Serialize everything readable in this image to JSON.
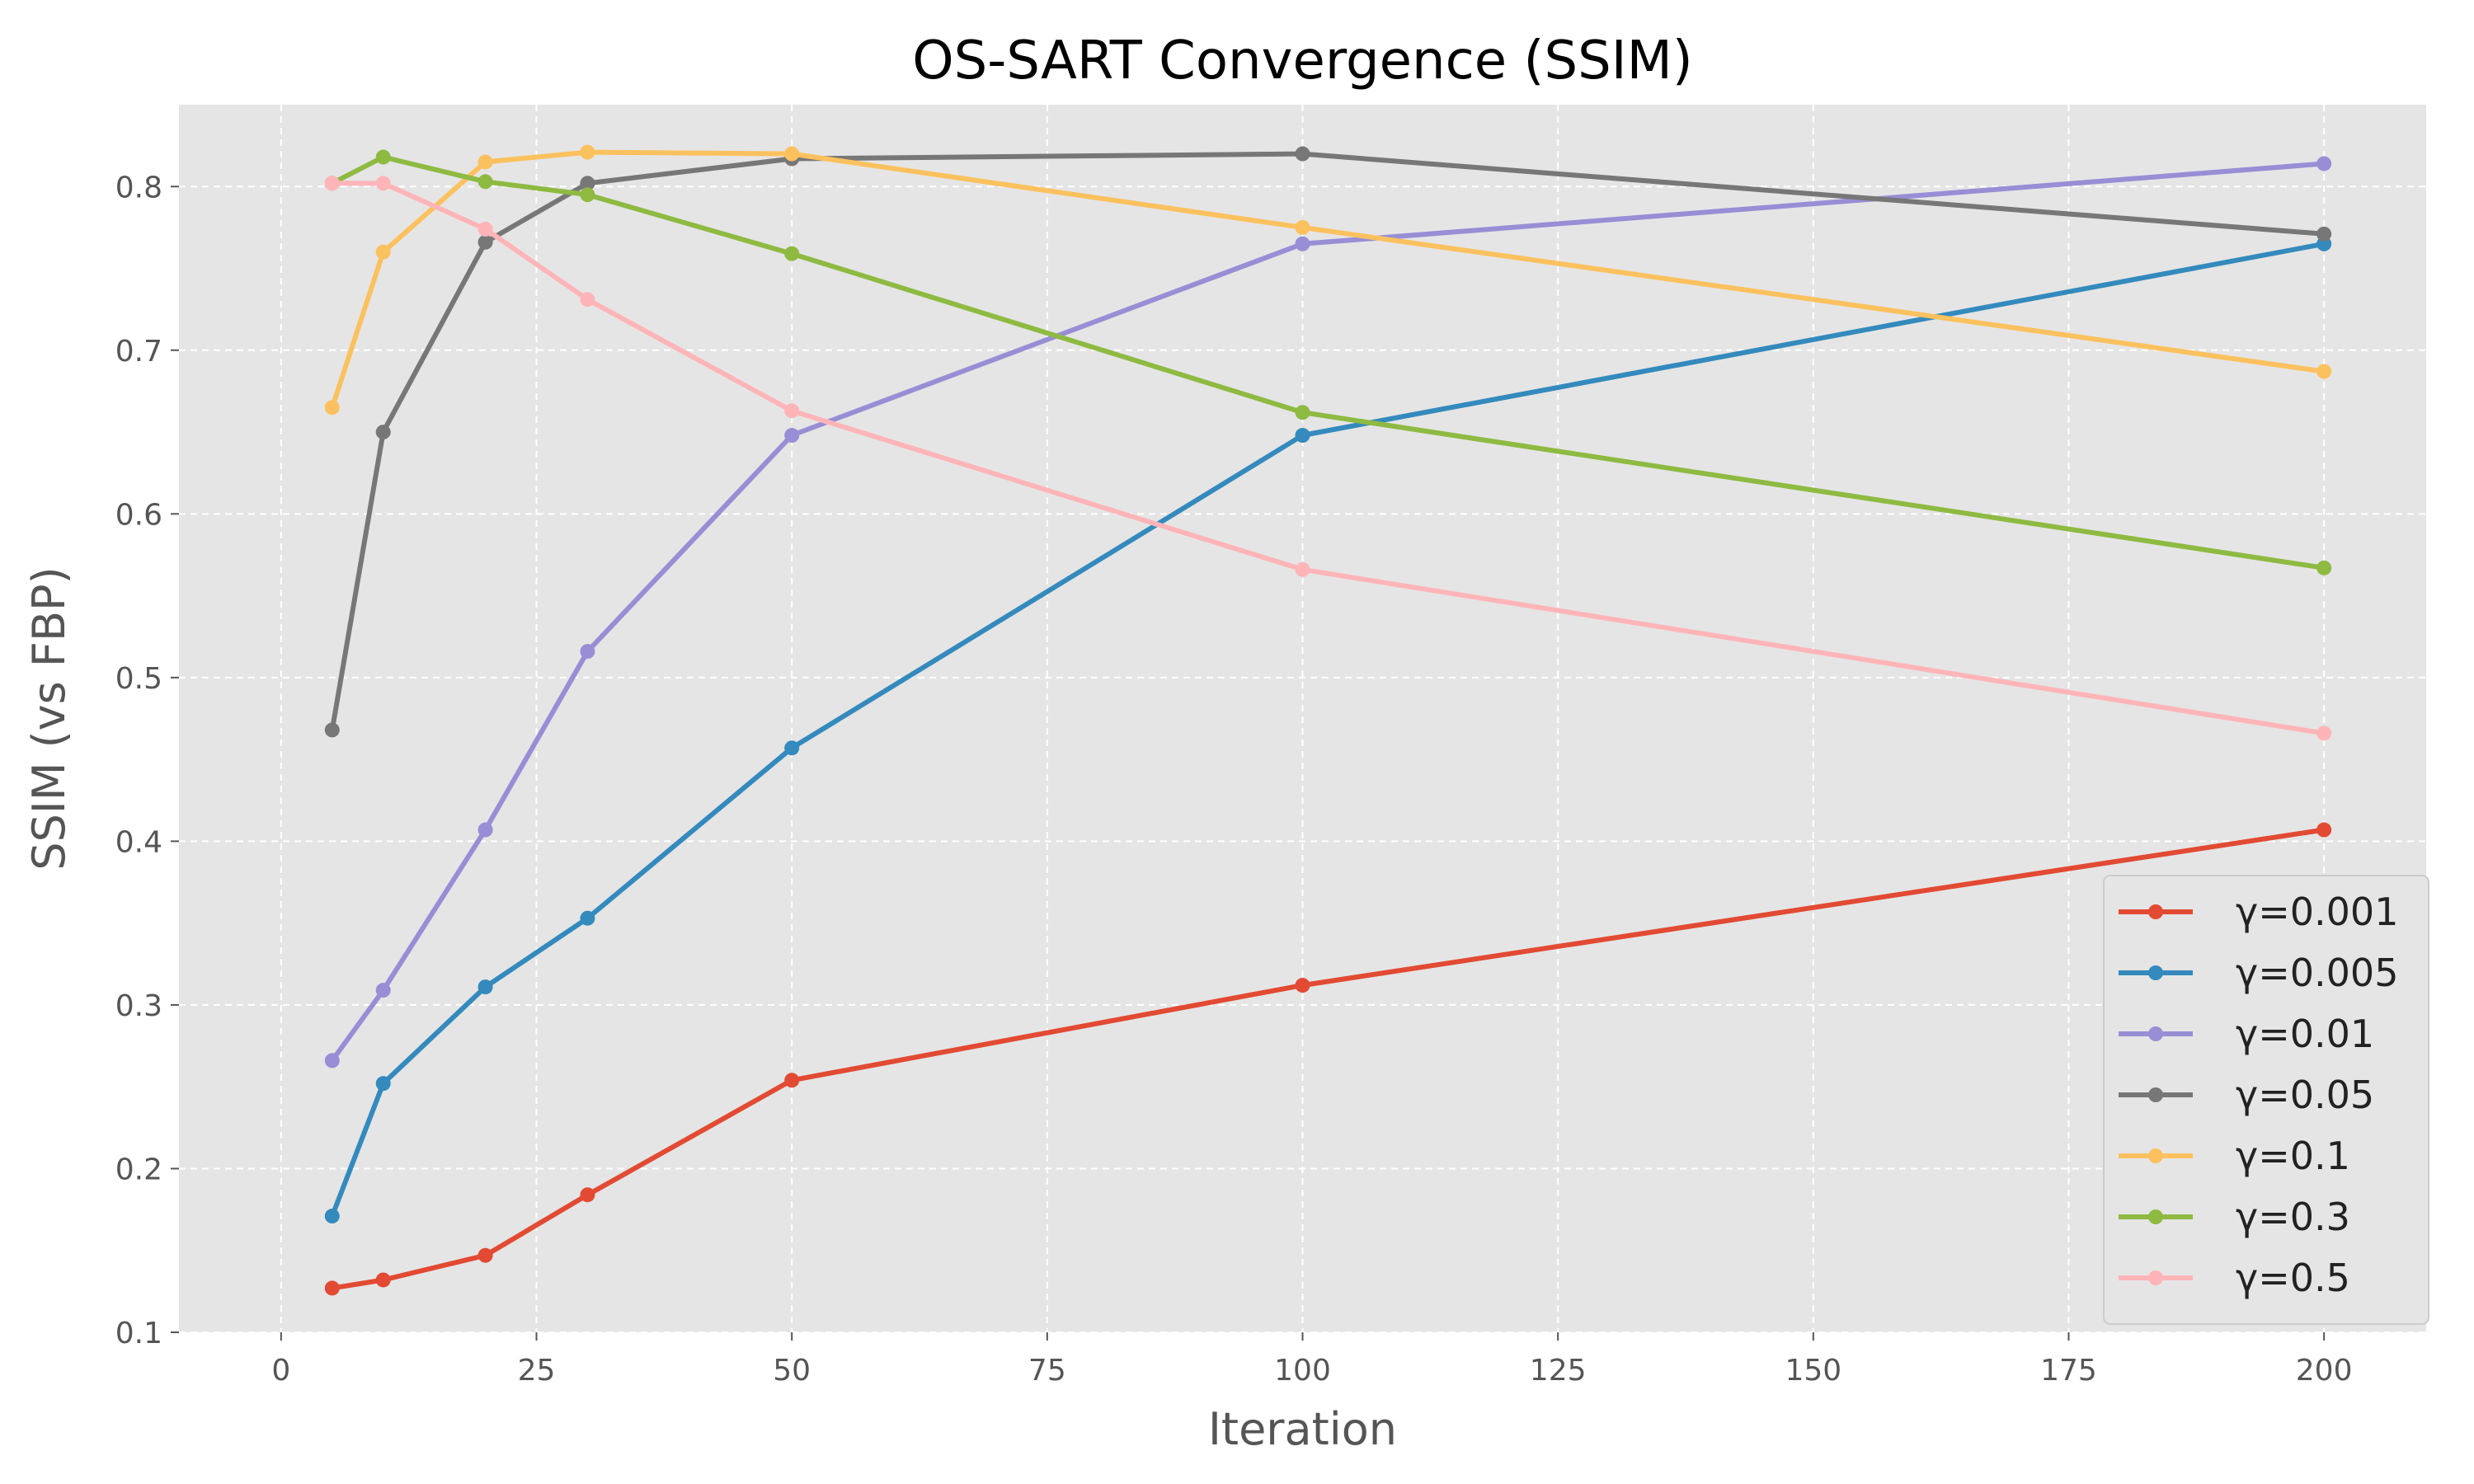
{
  "chart_data": {
    "type": "line",
    "title": "OS-SART Convergence (SSIM)",
    "xlabel": "Iteration",
    "ylabel": "SSIM (vs FBP)",
    "xlim": [
      -10,
      210
    ],
    "ylim": [
      0.1,
      0.85
    ],
    "xticks": [
      0,
      25,
      50,
      75,
      100,
      125,
      150,
      175,
      200
    ],
    "yticks": [
      0.1,
      0.2,
      0.3,
      0.4,
      0.5,
      0.6,
      0.7,
      0.8
    ],
    "xtick_labels": [
      "0",
      "25",
      "50",
      "75",
      "100",
      "125",
      "150",
      "175",
      "200"
    ],
    "ytick_labels": [
      "0.1",
      "0.2",
      "0.3",
      "0.4",
      "0.5",
      "0.6",
      "0.7",
      "0.8"
    ],
    "grid": true,
    "legend_position": "bottom-right",
    "x": [
      5,
      10,
      20,
      30,
      50,
      100,
      200
    ],
    "series": [
      {
        "name": "γ=0.001",
        "color": "#E24A33",
        "values": [
          0.127,
          0.132,
          0.147,
          0.184,
          0.254,
          0.312,
          0.407
        ]
      },
      {
        "name": "γ=0.005",
        "color": "#348ABD",
        "values": [
          0.171,
          0.252,
          0.311,
          0.353,
          0.457,
          0.648,
          0.765
        ]
      },
      {
        "name": "γ=0.01",
        "color": "#988ED5",
        "values": [
          0.266,
          0.309,
          0.407,
          0.516,
          0.648,
          0.765,
          0.814
        ]
      },
      {
        "name": "γ=0.05",
        "color": "#777777",
        "values": [
          0.468,
          0.65,
          0.766,
          0.802,
          0.817,
          0.82,
          0.771
        ]
      },
      {
        "name": "γ=0.1",
        "color": "#FBC15E",
        "values": [
          0.665,
          0.76,
          0.815,
          0.821,
          0.82,
          0.775,
          0.687
        ]
      },
      {
        "name": "γ=0.3",
        "color": "#8EBA42",
        "values": [
          0.802,
          0.818,
          0.803,
          0.795,
          0.759,
          0.662,
          0.567
        ]
      },
      {
        "name": "γ=0.5",
        "color": "#FFB5B8",
        "values": [
          0.802,
          0.802,
          0.774,
          0.731,
          0.663,
          0.566,
          0.466
        ]
      }
    ],
    "colors": {
      "plot_background": "#E5E5E5",
      "grid": "#FFFFFF",
      "axis_text": "#555555"
    }
  }
}
